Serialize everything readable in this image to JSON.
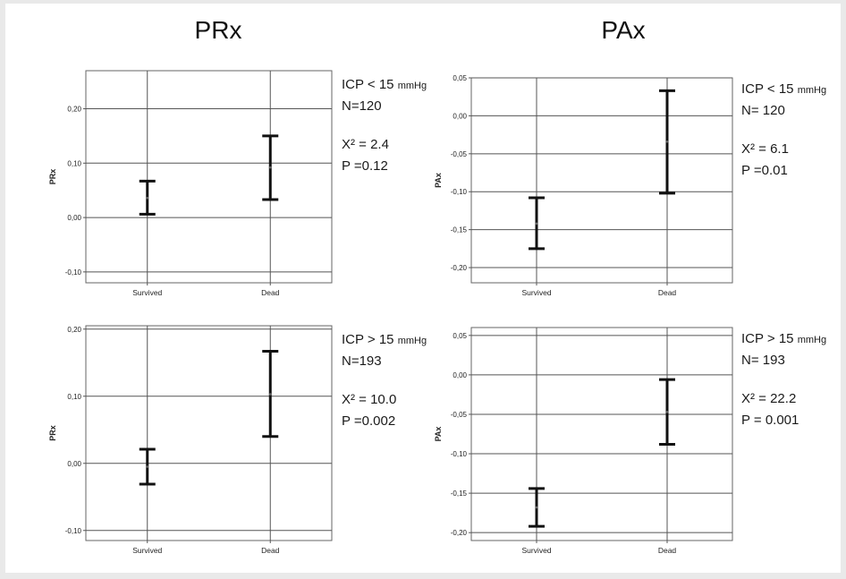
{
  "headings": {
    "left": "PRx",
    "right": "PAx"
  },
  "chart_data": [
    {
      "type": "errorbar",
      "ylabel": "PRx",
      "categories": [
        "Survived",
        "Dead"
      ],
      "ylim": [
        -0.12,
        0.27
      ],
      "yticks": [
        -0.1,
        0.0,
        0.1,
        0.2
      ],
      "ytick_labels": [
        "-0,10",
        "0,00",
        "0,10",
        "0,20"
      ],
      "intervals": [
        {
          "category": "Survived",
          "low": 0.006,
          "mean": 0.036,
          "high": 0.067
        },
        {
          "category": "Dead",
          "low": 0.033,
          "mean": 0.092,
          "high": 0.15
        }
      ],
      "annotation": {
        "line1": "ICP < 15",
        "line1_unit": "mmHg",
        "line2": "N=120",
        "line3": "X² = 2.4",
        "line4": "P =0.12"
      }
    },
    {
      "type": "errorbar",
      "ylabel": "PAx",
      "categories": [
        "Survived",
        "Dead"
      ],
      "ylim": [
        -0.22,
        0.05
      ],
      "yticks": [
        -0.2,
        -0.15,
        -0.1,
        -0.05,
        0.0,
        0.05
      ],
      "ytick_labels": [
        "-0,20",
        "-0,15",
        "-0,10",
        "-0,05",
        "0,00",
        "0,05"
      ],
      "intervals": [
        {
          "category": "Survived",
          "low": -0.175,
          "mean": -0.142,
          "high": -0.108
        },
        {
          "category": "Dead",
          "low": -0.102,
          "mean": -0.034,
          "high": 0.033
        }
      ],
      "annotation": {
        "line1": "ICP < 15",
        "line1_unit": "mmHg",
        "line2": "N= 120",
        "line3": "X² = 6.1",
        "line4": "P =0.01"
      }
    },
    {
      "type": "errorbar",
      "ylabel": "PRx",
      "categories": [
        "Survived",
        "Dead"
      ],
      "ylim": [
        -0.115,
        0.205
      ],
      "yticks": [
        -0.1,
        0.0,
        0.1,
        0.2
      ],
      "ytick_labels": [
        "-0,10",
        "0,00",
        "0,10",
        "0,20"
      ],
      "intervals": [
        {
          "category": "Survived",
          "low": -0.031,
          "mean": -0.005,
          "high": 0.021
        },
        {
          "category": "Dead",
          "low": 0.04,
          "mean": 0.103,
          "high": 0.167
        }
      ],
      "annotation": {
        "line1": "ICP > 15",
        "line1_unit": "mmHg",
        "line2": "N=193",
        "line3": "X² = 10.0",
        "line4": "P =0.002"
      }
    },
    {
      "type": "errorbar",
      "ylabel": "PAx",
      "categories": [
        "Survived",
        "Dead"
      ],
      "ylim": [
        -0.21,
        0.06
      ],
      "yticks": [
        -0.2,
        -0.15,
        -0.1,
        -0.05,
        0.0,
        0.05
      ],
      "ytick_labels": [
        "-0,20",
        "-0,15",
        "-0,10",
        "-0,05",
        "0,00",
        "0,05"
      ],
      "intervals": [
        {
          "category": "Survived",
          "low": -0.192,
          "mean": -0.168,
          "high": -0.144
        },
        {
          "category": "Dead",
          "low": -0.088,
          "mean": -0.047,
          "high": -0.006
        }
      ],
      "annotation": {
        "line1": "ICP > 15",
        "line1_unit": "mmHg",
        "line2": "N= 193",
        "line3": "X² =  22.2",
        "line4": "P = 0.001"
      }
    }
  ]
}
